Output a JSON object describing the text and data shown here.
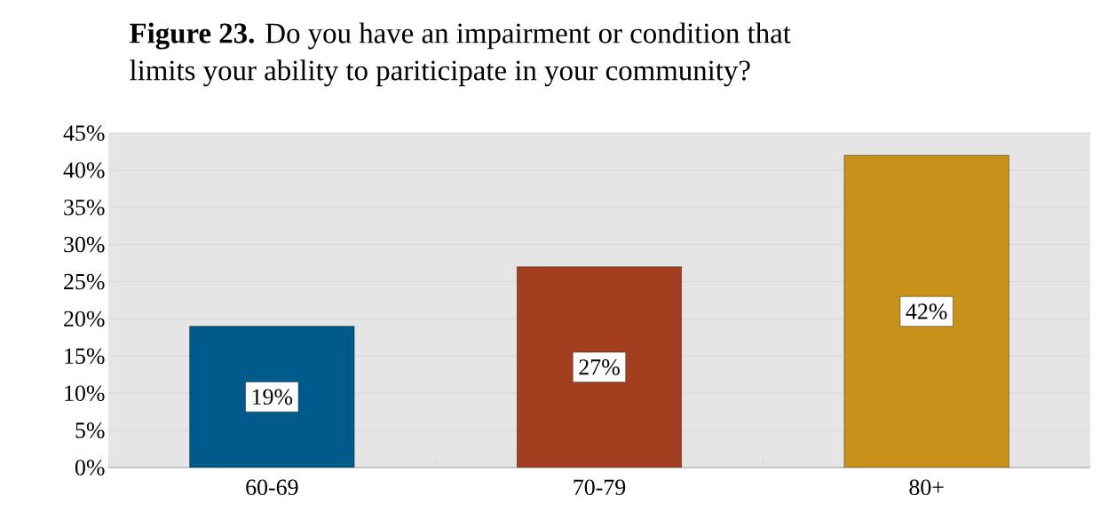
{
  "chart_data": {
    "type": "bar",
    "title": "**Figure 23.** Do you have an impairment or condition that limits your ability to pariticipate in your community?",
    "categories": [
      "60-69",
      "70-79",
      "80+"
    ],
    "values": [
      19,
      27,
      42
    ],
    "value_labels": [
      "19%",
      "27%",
      "42%"
    ],
    "colors": [
      "#005a8c",
      "#a33f1f",
      "#c8921a"
    ],
    "ylim": [
      0,
      45
    ],
    "yticks": [
      {
        "value": 0,
        "label": "0%"
      },
      {
        "value": 5,
        "label": "5%"
      },
      {
        "value": 10,
        "label": "10%"
      },
      {
        "value": 15,
        "label": "15%"
      },
      {
        "value": 20,
        "label": "20%"
      },
      {
        "value": 25,
        "label": "25%"
      },
      {
        "value": 30,
        "label": "30%"
      },
      {
        "value": 35,
        "label": "35%"
      },
      {
        "value": 40,
        "label": "40%"
      },
      {
        "value": 45,
        "label": "45%"
      }
    ],
    "grid": "y"
  }
}
